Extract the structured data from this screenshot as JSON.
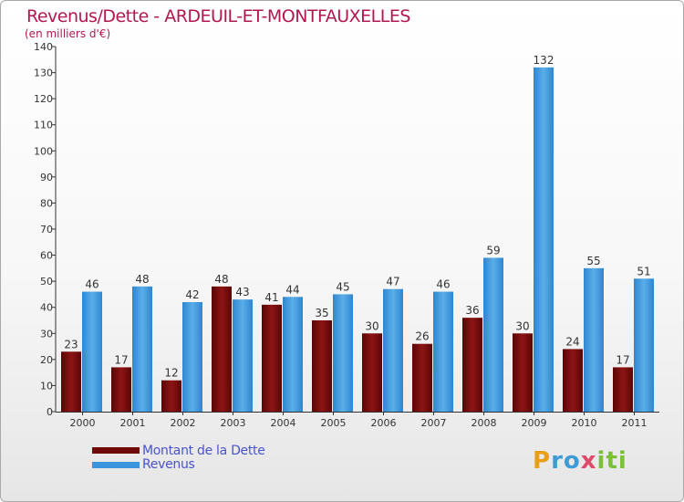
{
  "chart_data": {
    "type": "bar",
    "title": "Revenus/Dette - ARDEUIL-ET-MONTFAUXELLES",
    "subtitle": "(en milliers d'€)",
    "categories": [
      "2000",
      "2001",
      "2002",
      "2003",
      "2004",
      "2005",
      "2006",
      "2007",
      "2008",
      "2009",
      "2010",
      "2011"
    ],
    "series": [
      {
        "name": "Montant de la Dette",
        "color": "#7a0c0c",
        "values": [
          23,
          17,
          12,
          48,
          41,
          35,
          30,
          26,
          36,
          30,
          24,
          17
        ]
      },
      {
        "name": "Revenus",
        "color": "#3a93db",
        "values": [
          46,
          48,
          42,
          43,
          44,
          45,
          47,
          46,
          59,
          132,
          55,
          51
        ]
      }
    ],
    "ylim": [
      0,
      140
    ],
    "yticks": [
      0,
      10,
      20,
      30,
      40,
      50,
      60,
      70,
      80,
      90,
      100,
      110,
      120,
      130,
      140
    ],
    "grid": false,
    "legend_position": "bottom-left",
    "data_labels": true
  },
  "branding": {
    "logo_text": "Proxiti"
  }
}
